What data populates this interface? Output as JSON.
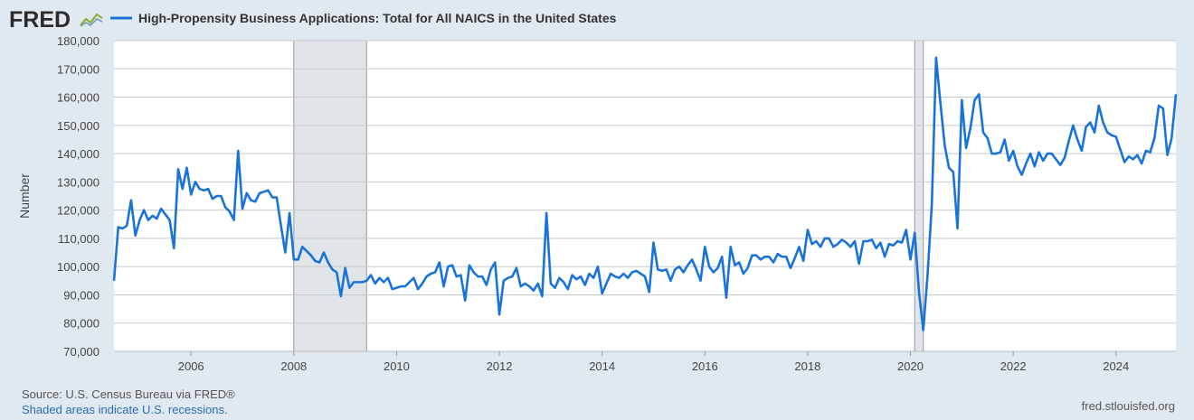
{
  "logo": {
    "text": "FRED"
  },
  "legend": {
    "label": "High-Propensity Business Applications: Total for All NAICS in the United States",
    "color": "#1a73d9"
  },
  "footer": {
    "source": "Source: U.S. Census Bureau via FRED®",
    "shaded": "Shaded areas indicate U.S. recessions.",
    "url": "fred.stlouisfed.org"
  },
  "colors": {
    "background": "#e1e9f0",
    "plot": "#ffffff",
    "grid": "#c8c8c8",
    "recession": "#e1e4e8",
    "line": "#1a73d9"
  },
  "chart_data": {
    "type": "line",
    "title": "",
    "xlabel": "",
    "ylabel": "Number",
    "ylim": [
      70000,
      180000
    ],
    "xlim": [
      "2004-07",
      "2025-03"
    ],
    "yticks": [
      70000,
      80000,
      90000,
      100000,
      110000,
      120000,
      130000,
      140000,
      150000,
      160000,
      170000,
      180000
    ],
    "ytick_labels": [
      "70,000",
      "80,000",
      "90,000",
      "100,000",
      "110,000",
      "120,000",
      "130,000",
      "140,000",
      "150,000",
      "160,000",
      "170,000",
      "180,000"
    ],
    "xtick_labels": [
      "2006",
      "2008",
      "2010",
      "2012",
      "2014",
      "2016",
      "2018",
      "2020",
      "2022",
      "2024"
    ],
    "grid": true,
    "recessions": [
      {
        "start": "2008-01",
        "end": "2009-06"
      },
      {
        "start": "2020-02",
        "end": "2020-04"
      }
    ],
    "series": [
      {
        "start": "2004-07",
        "frequency": "monthly",
        "values": [
          95000,
          114000,
          113500,
          114500,
          123500,
          111000,
          116500,
          120000,
          116500,
          118000,
          117000,
          120500,
          118500,
          116500,
          106500,
          134500,
          127500,
          135000,
          125500,
          130000,
          127500,
          127000,
          127500,
          124000,
          125000,
          125000,
          121000,
          119500,
          116500,
          141000,
          120500,
          126000,
          123500,
          123000,
          126000,
          126500,
          127000,
          124500,
          124500,
          114500,
          105000,
          119000,
          102500,
          102500,
          107000,
          105500,
          104000,
          102000,
          101500,
          105000,
          101500,
          99000,
          98000,
          89500,
          99500,
          92500,
          94500,
          94500,
          94500,
          95000,
          97000,
          94000,
          96000,
          94500,
          96000,
          92000,
          92500,
          93000,
          93000,
          94500,
          96000,
          92000,
          94000,
          96500,
          97500,
          98000,
          101500,
          93000,
          100000,
          100500,
          96500,
          97000,
          88000,
          100500,
          98000,
          96500,
          96500,
          93500,
          99000,
          101500,
          83000,
          95000,
          96000,
          96500,
          99500,
          93000,
          94000,
          93000,
          91500,
          94000,
          89500,
          119000,
          94000,
          92500,
          96000,
          94500,
          92000,
          97000,
          95500,
          96500,
          93500,
          97500,
          96000,
          100000,
          90500,
          94000,
          97500,
          96500,
          96000,
          97500,
          96000,
          98000,
          98500,
          97500,
          96500,
          91000,
          108500,
          99000,
          98500,
          99000,
          95000,
          99000,
          100000,
          98000,
          100500,
          102500,
          99000,
          95000,
          107000,
          100000,
          98000,
          99500,
          103500,
          89000,
          107000,
          100500,
          101500,
          97500,
          99500,
          104000,
          104000,
          102500,
          103500,
          103500,
          101500,
          104500,
          103500,
          103500,
          99500,
          103000,
          107000,
          102000,
          113000,
          108000,
          109000,
          107000,
          110000,
          110000,
          107000,
          108000,
          109500,
          108500,
          107000,
          109000,
          101000,
          109000,
          109000,
          109500,
          106500,
          108500,
          103500,
          108000,
          107500,
          109000,
          108500,
          113000,
          102500,
          112000,
          91000,
          77500,
          97000,
          122000,
          174000,
          158000,
          143000,
          135000,
          133500,
          113500,
          159000,
          142000,
          149000,
          159000,
          161000,
          147500,
          145500,
          140000,
          140000,
          140500,
          145000,
          137500,
          141000,
          135500,
          132500,
          136500,
          140000,
          135500,
          140500,
          137500,
          140000,
          140000,
          138000,
          136000,
          138500,
          144500,
          150000,
          145000,
          141000,
          149500,
          151000,
          147500,
          157000,
          151000,
          147500,
          146500,
          146000,
          141500,
          137000,
          139000,
          138000,
          139500,
          136500,
          141000,
          140500,
          145500,
          157000,
          156000,
          139500,
          145500,
          161000
        ]
      }
    ]
  }
}
